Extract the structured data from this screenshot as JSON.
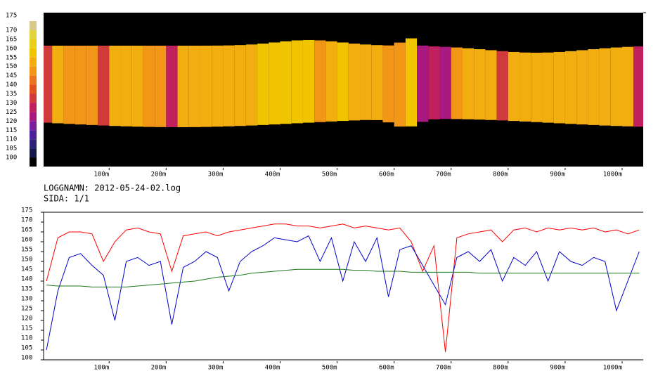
{
  "chart_data": [
    {
      "type": "heatmap",
      "x": [
        -10,
        10,
        30,
        50,
        70,
        90,
        110,
        130,
        150,
        170,
        190,
        210,
        230,
        250,
        270,
        290,
        310,
        330,
        350,
        370,
        390,
        410,
        430,
        450,
        470,
        490,
        510,
        530,
        550,
        570,
        590,
        610,
        630,
        650,
        670,
        690,
        710,
        730,
        750,
        770,
        790,
        810,
        830,
        850,
        870,
        890,
        910,
        930,
        950,
        970,
        990,
        1010,
        1030
      ],
      "values": [
        135,
        155,
        152,
        150,
        150,
        135,
        155,
        156,
        154,
        150,
        152,
        130,
        155,
        156,
        153,
        155,
        156,
        154,
        157,
        158,
        162,
        162,
        160,
        158,
        150,
        157,
        160,
        156,
        157,
        155,
        152,
        150,
        158,
        125,
        130,
        125,
        150,
        155,
        154,
        156,
        135,
        154,
        155,
        153,
        156,
        154,
        155,
        157,
        155,
        156,
        154,
        155,
        130
      ],
      "xlim": [
        -15,
        1037
      ],
      "xticks": [
        {
          "value": 100,
          "label": "100m"
        },
        {
          "value": 200,
          "label": "200m"
        },
        {
          "value": 300,
          "label": "300m"
        },
        {
          "value": 400,
          "label": "400m"
        },
        {
          "value": 500,
          "label": "500m"
        },
        {
          "value": 600,
          "label": "600m"
        },
        {
          "value": 700,
          "label": "700m"
        },
        {
          "value": 800,
          "label": "800m"
        },
        {
          "value": 900,
          "label": "900m"
        },
        {
          "value": 1000,
          "label": "1000m"
        }
      ],
      "colorbar": {
        "ticks": [
          175,
          170,
          165,
          160,
          155,
          150,
          145,
          140,
          135,
          130,
          125,
          120,
          115,
          110,
          105,
          100
        ],
        "colors": [
          "#d6c98a",
          "#e2d33a",
          "#e8cf18",
          "#f0c400",
          "#f2ad10",
          "#f29618",
          "#ea7420",
          "#e05220",
          "#d03a3a",
          "#c0205e",
          "#a8187e",
          "#7c1e9c",
          "#4c209c",
          "#2c2078",
          "#141848",
          "#000000"
        ]
      }
    },
    {
      "type": "line",
      "annotations": [
        "LOGGNAMN: 2012-05-24-02.log",
        "SIDA: 1/1"
      ],
      "x": [
        -10,
        10,
        30,
        50,
        70,
        90,
        110,
        130,
        150,
        170,
        190,
        210,
        230,
        250,
        270,
        290,
        310,
        330,
        350,
        370,
        390,
        410,
        430,
        450,
        470,
        490,
        510,
        530,
        550,
        570,
        590,
        610,
        630,
        650,
        670,
        690,
        710,
        730,
        750,
        770,
        790,
        810,
        830,
        850,
        870,
        890,
        910,
        930,
        950,
        970,
        990,
        1010,
        1030
      ],
      "series": [
        {
          "color": "#ff0000",
          "values": [
            140,
            162,
            165,
            165,
            164,
            150,
            160,
            166,
            167,
            165,
            164,
            145,
            163,
            164,
            165,
            163,
            165,
            166,
            167,
            168,
            169,
            169,
            168,
            168,
            167,
            168,
            169,
            167,
            168,
            167,
            166,
            167,
            160,
            145,
            158,
            104,
            162,
            164,
            165,
            166,
            160,
            166,
            167,
            165,
            167,
            166,
            167,
            166,
            167,
            165,
            166,
            164,
            166
          ]
        },
        {
          "color": "#0000cc",
          "values": [
            105,
            135,
            152,
            154,
            148,
            143,
            120,
            150,
            152,
            148,
            150,
            118,
            147,
            150,
            155,
            152,
            135,
            150,
            155,
            158,
            162,
            161,
            160,
            163,
            150,
            162,
            140,
            160,
            150,
            162,
            132,
            156,
            158,
            148,
            138,
            128,
            152,
            155,
            150,
            156,
            140,
            152,
            148,
            155,
            140,
            155,
            150,
            148,
            152,
            150,
            125,
            140,
            155
          ]
        },
        {
          "color": "#1a7a1a",
          "values": [
            138,
            137.5,
            137.5,
            137.5,
            137,
            137,
            137,
            137,
            137.5,
            138,
            138.5,
            139,
            139.5,
            140,
            141,
            142,
            142.5,
            143,
            144,
            144.5,
            145,
            145.5,
            146,
            146,
            146,
            146,
            146,
            145.5,
            145.5,
            145,
            145,
            145,
            144.5,
            144.5,
            144.5,
            144.5,
            144.5,
            144.5,
            144,
            144,
            144,
            144,
            144,
            144,
            144,
            144,
            144,
            144,
            144,
            144,
            144,
            144,
            144
          ]
        }
      ],
      "xlim": [
        -15,
        1037
      ],
      "ylim": [
        100,
        175
      ],
      "yticks": [
        100,
        105,
        110,
        115,
        120,
        125,
        130,
        135,
        140,
        145,
        150,
        155,
        160,
        165,
        170,
        175
      ],
      "xticks": [
        {
          "value": 100,
          "label": "100m"
        },
        {
          "value": 200,
          "label": "200m"
        },
        {
          "value": 300,
          "label": "300m"
        },
        {
          "value": 400,
          "label": "400m"
        },
        {
          "value": 500,
          "label": "500m"
        },
        {
          "value": 600,
          "label": "600m"
        },
        {
          "value": 700,
          "label": "700m"
        },
        {
          "value": 800,
          "label": "800m"
        },
        {
          "value": 900,
          "label": "900m"
        },
        {
          "value": 1000,
          "label": "1000m"
        }
      ]
    }
  ]
}
